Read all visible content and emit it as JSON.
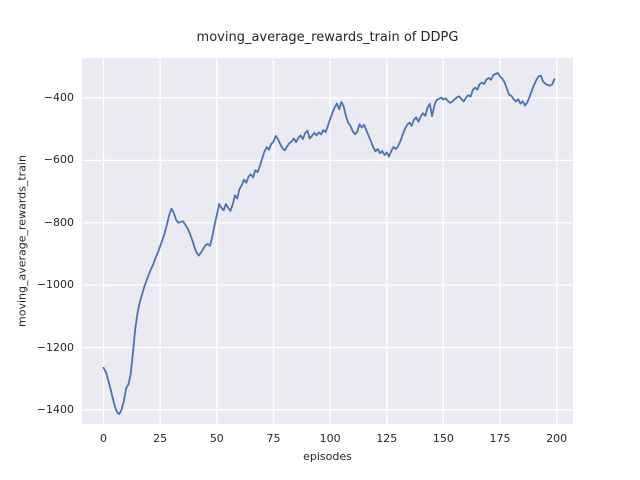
{
  "chart_data": {
    "type": "line",
    "title": "moving_average_rewards_train of DDPG",
    "xlabel": "episodes",
    "ylabel": "moving_average_rewards_train",
    "xticks": [
      0,
      25,
      50,
      75,
      100,
      125,
      150,
      175,
      200
    ],
    "xtick_labels": [
      "0",
      "25",
      "50",
      "75",
      "100",
      "125",
      "150",
      "175",
      "200"
    ],
    "yticks": [
      -400,
      -600,
      -800,
      -1000,
      -1200,
      -1400
    ],
    "ytick_labels": [
      "−400",
      "−600",
      "−800",
      "−1000",
      "−1200",
      "−1400"
    ],
    "xlim": [
      -9.5,
      207.2
    ],
    "ylim": [
      -1445,
      -272
    ],
    "grid": true,
    "legend_position": "none",
    "line_color": "#4C72B0",
    "plot_background": "#EAEAF2",
    "grid_color": "#FFFFFF",
    "text_color": "#262626",
    "x": [
      0,
      1,
      2,
      3,
      4,
      5,
      6,
      7,
      8,
      9,
      10,
      11,
      12,
      13,
      14,
      15,
      16,
      17,
      18,
      19,
      20,
      21,
      22,
      23,
      24,
      25,
      26,
      27,
      28,
      29,
      30,
      31,
      32,
      33,
      34,
      35,
      36,
      37,
      38,
      39,
      40,
      41,
      42,
      43,
      44,
      45,
      46,
      47,
      48,
      49,
      50,
      51,
      52,
      53,
      54,
      55,
      56,
      57,
      58,
      59,
      60,
      61,
      62,
      63,
      64,
      65,
      66,
      67,
      68,
      69,
      70,
      71,
      72,
      73,
      74,
      75,
      76,
      77,
      78,
      79,
      80,
      81,
      82,
      83,
      84,
      85,
      86,
      87,
      88,
      89,
      90,
      91,
      92,
      93,
      94,
      95,
      96,
      97,
      98,
      99,
      100,
      101,
      102,
      103,
      104,
      105,
      106,
      107,
      108,
      109,
      110,
      111,
      112,
      113,
      114,
      115,
      116,
      117,
      118,
      119,
      120,
      121,
      122,
      123,
      124,
      125,
      126,
      127,
      128,
      129,
      130,
      131,
      132,
      133,
      134,
      135,
      136,
      137,
      138,
      139,
      140,
      141,
      142,
      143,
      144,
      145,
      146,
      147,
      148,
      149,
      150,
      151,
      152,
      153,
      154,
      155,
      156,
      157,
      158,
      159,
      160,
      161,
      162,
      163,
      164,
      165,
      166,
      167,
      168,
      169,
      170,
      171,
      172,
      173,
      174,
      175,
      176,
      177,
      178,
      179,
      180,
      181,
      182,
      183,
      184,
      185,
      186,
      187,
      188,
      189,
      190,
      191,
      192,
      193,
      194,
      195,
      196,
      197,
      198,
      199
    ],
    "y": [
      -1265,
      -1278,
      -1302,
      -1330,
      -1360,
      -1388,
      -1408,
      -1413,
      -1398,
      -1370,
      -1330,
      -1318,
      -1285,
      -1215,
      -1140,
      -1090,
      -1055,
      -1030,
      -1005,
      -985,
      -965,
      -948,
      -932,
      -912,
      -895,
      -875,
      -855,
      -832,
      -805,
      -775,
      -755,
      -768,
      -790,
      -800,
      -797,
      -795,
      -805,
      -817,
      -833,
      -852,
      -875,
      -895,
      -905,
      -896,
      -884,
      -872,
      -868,
      -874,
      -845,
      -808,
      -775,
      -740,
      -752,
      -760,
      -740,
      -752,
      -762,
      -742,
      -712,
      -722,
      -692,
      -680,
      -662,
      -672,
      -652,
      -645,
      -655,
      -632,
      -638,
      -618,
      -595,
      -572,
      -558,
      -566,
      -548,
      -540,
      -522,
      -532,
      -548,
      -562,
      -568,
      -556,
      -545,
      -540,
      -530,
      -542,
      -528,
      -520,
      -532,
      -512,
      -505,
      -530,
      -522,
      -512,
      -520,
      -510,
      -517,
      -503,
      -510,
      -490,
      -468,
      -448,
      -430,
      -418,
      -436,
      -413,
      -428,
      -458,
      -480,
      -490,
      -507,
      -516,
      -508,
      -484,
      -495,
      -486,
      -504,
      -521,
      -539,
      -557,
      -571,
      -564,
      -577,
      -570,
      -583,
      -575,
      -588,
      -570,
      -557,
      -564,
      -555,
      -539,
      -518,
      -500,
      -486,
      -479,
      -489,
      -470,
      -462,
      -476,
      -459,
      -449,
      -457,
      -431,
      -419,
      -458,
      -424,
      -407,
      -403,
      -399,
      -405,
      -401,
      -410,
      -416,
      -411,
      -404,
      -398,
      -395,
      -404,
      -411,
      -399,
      -391,
      -396,
      -374,
      -367,
      -373,
      -356,
      -351,
      -355,
      -341,
      -336,
      -342,
      -327,
      -323,
      -320,
      -331,
      -338,
      -350,
      -370,
      -390,
      -393,
      -404,
      -411,
      -404,
      -418,
      -411,
      -424,
      -415,
      -397,
      -378,
      -358,
      -343,
      -331,
      -329,
      -347,
      -355,
      -358,
      -361,
      -357,
      -340
    ]
  }
}
